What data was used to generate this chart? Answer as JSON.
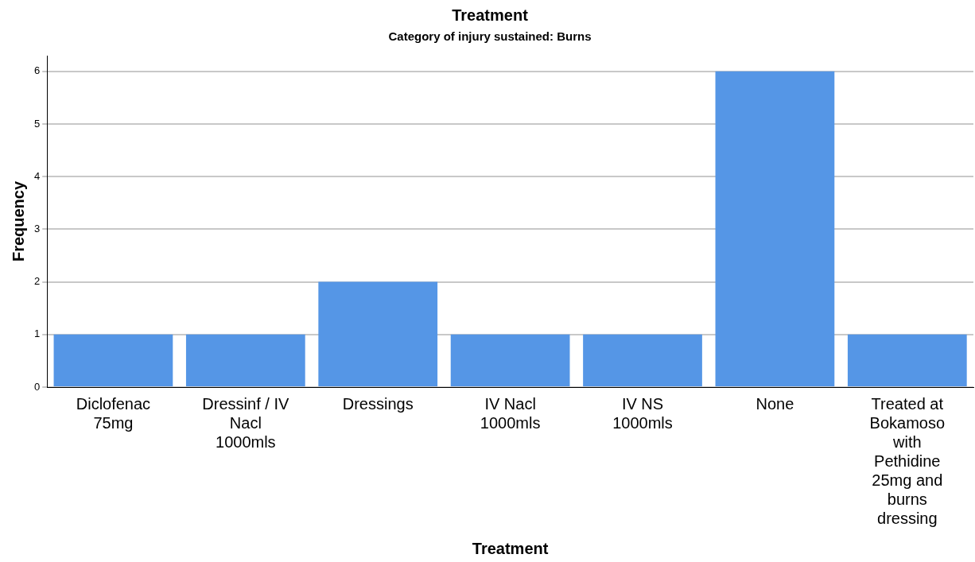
{
  "chart_data": {
    "type": "bar",
    "title": "Treatment",
    "subtitle": "Category of injury sustained: Burns",
    "xlabel": "Treatment",
    "ylabel": "Frequency",
    "categories": [
      "Diclofenac 75mg",
      "Dressinf / IV Nacl 1000mls",
      "Dressings",
      "IV Nacl 1000mls",
      "IV NS 1000mls",
      "None",
      "Treated at Bokamoso with Pethidine 25mg and burns dressing"
    ],
    "values": [
      1,
      1,
      2,
      1,
      1,
      6,
      1
    ],
    "color": "#5596e6",
    "ylim": [
      0,
      6.3
    ],
    "yticks": [
      0,
      1,
      2,
      3,
      4,
      5,
      6
    ],
    "grid": "y",
    "legend": false
  }
}
